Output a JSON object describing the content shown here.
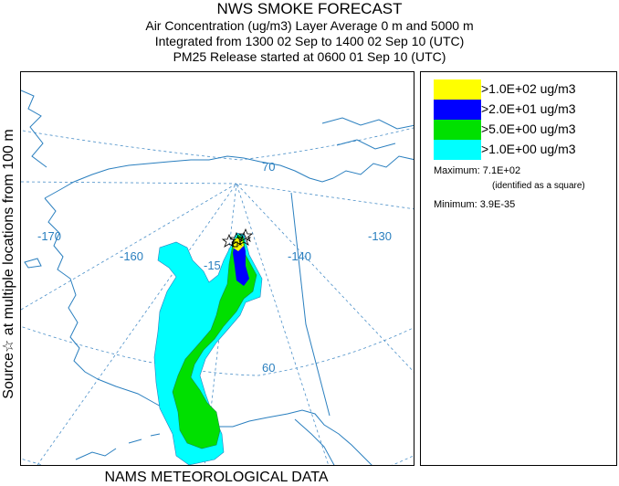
{
  "header": {
    "title": "NWS SMOKE FORECAST",
    "line1": "Air Concentration (ug/m3) Layer Average    0 m and  5000 m",
    "line2": "Integrated from 1300 02 Sep to 1400 02 Sep 10 (UTC)",
    "line3": "PM25 Release started at 0600 01 Sep 10 (UTC)"
  },
  "side_label": "Source☆  at multiple locations   from   100 m",
  "footer": "NAMS METEOROLOGICAL DATA",
  "map": {
    "grid_labels": {
      "lat_70": "70",
      "lat_60": "60",
      "lon_170": "-170",
      "lon_160": "-160",
      "lon_150": "-15",
      "lon_140": "-140",
      "lon_130": "-130"
    },
    "colors": {
      "coast": "#2a7fbf",
      "grid": "#4a8fc8",
      "level_1": "#00ffff",
      "level_5": "#00e000",
      "level_20": "#0000ff",
      "level_100": "#ffff00"
    }
  },
  "legend": {
    "entries": [
      {
        "label": ">1.0E+02 ug/m3",
        "color": "#ffff00"
      },
      {
        "label": ">2.0E+01 ug/m3",
        "color": "#0000ff"
      },
      {
        "label": ">5.0E+00 ug/m3",
        "color": "#00e000"
      },
      {
        "label": ">1.0E+00 ug/m3",
        "color": "#00ffff"
      }
    ],
    "maximum": "Maximum: 7.1E+02",
    "maximum_note": "(identified as a square)",
    "minimum": "Minimum: 3.9E-35"
  }
}
